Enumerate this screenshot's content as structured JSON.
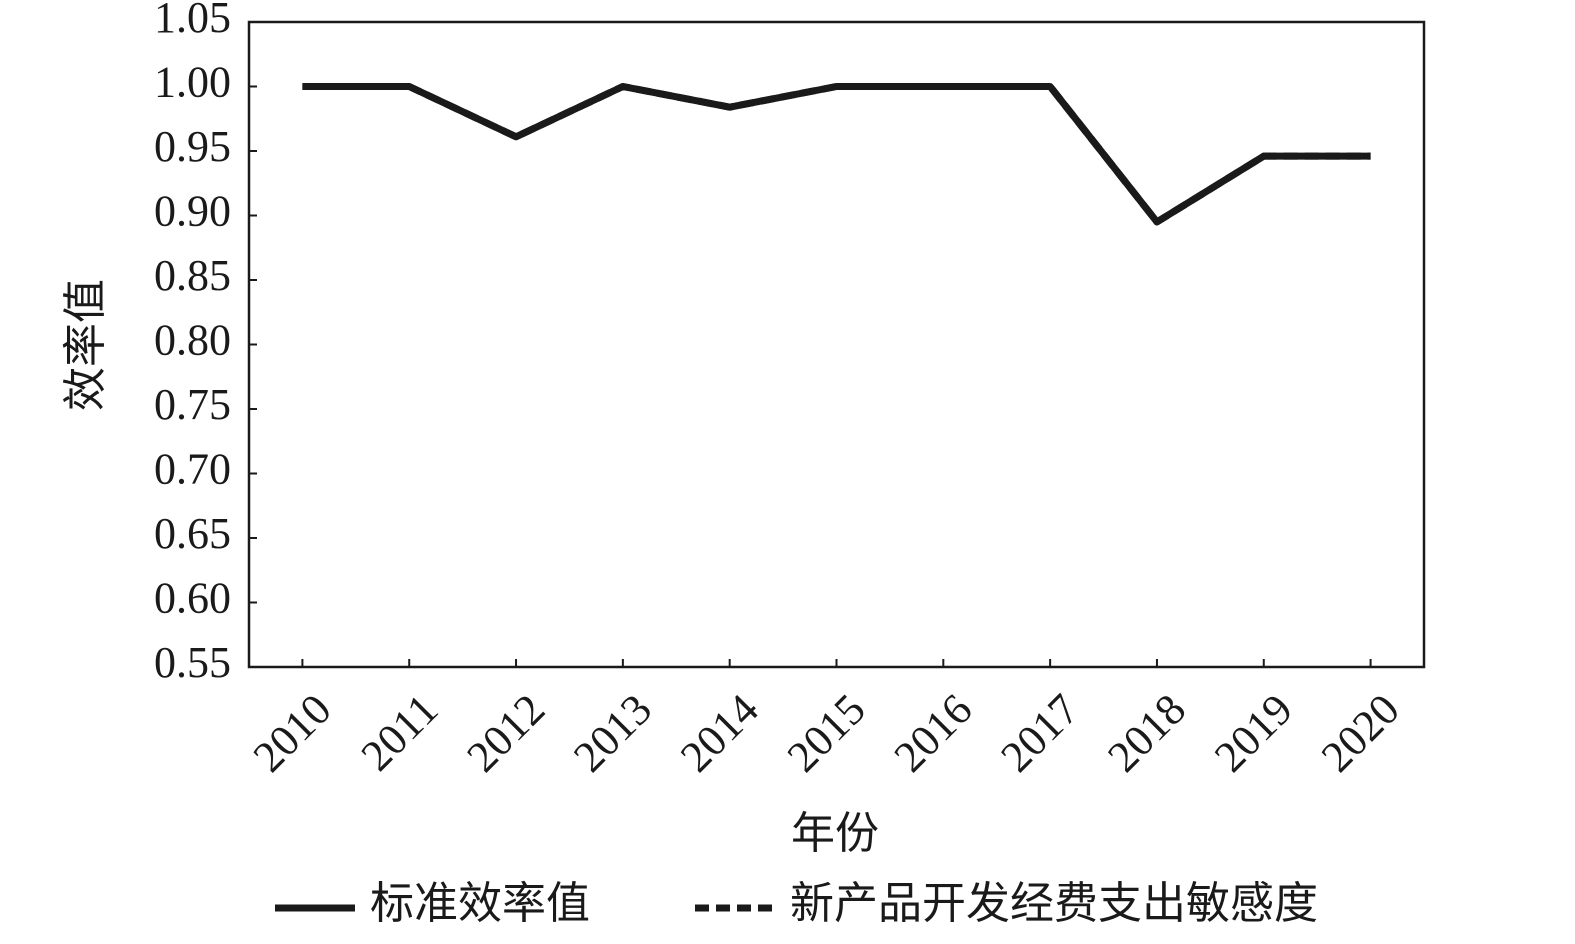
{
  "chart_data": {
    "type": "line",
    "x_label": "年份",
    "y_label": "效率值",
    "categories": [
      "2010",
      "2011",
      "2012",
      "2013",
      "2014",
      "2015",
      "2016",
      "2017",
      "2018",
      "2019",
      "2020"
    ],
    "series": [
      {
        "name": "标准效率值",
        "color": "#1a1a1a",
        "line_style": "solid",
        "values": [
          1.0,
          1.0,
          0.961,
          1.0,
          0.984,
          1.0,
          1.0,
          1.0,
          0.895,
          0.946,
          0.946
        ]
      },
      {
        "name": "新产品开发经费支出敏感度",
        "color": "#1a1a1a",
        "line_style": "dashed",
        "values": [
          1.0,
          1.0,
          0.961,
          1.0,
          0.984,
          1.0,
          1.0,
          1.0,
          0.895,
          0.946,
          0.946
        ]
      }
    ],
    "ylim": [
      0.55,
      1.05
    ],
    "yticks": [
      0.55,
      {
        "value": 0.6,
        "label": "0.60"
      },
      0.65,
      {
        "value": 0.7,
        "label": "0.70"
      },
      0.75,
      {
        "value": 0.8,
        "label": "0.80"
      },
      0.85,
      {
        "value": 0.9,
        "label": "0.90"
      },
      0.95,
      {
        "value": 1.0,
        "label": "1.00"
      },
      1.05
    ],
    "grid": false,
    "legend": "bottom"
  }
}
